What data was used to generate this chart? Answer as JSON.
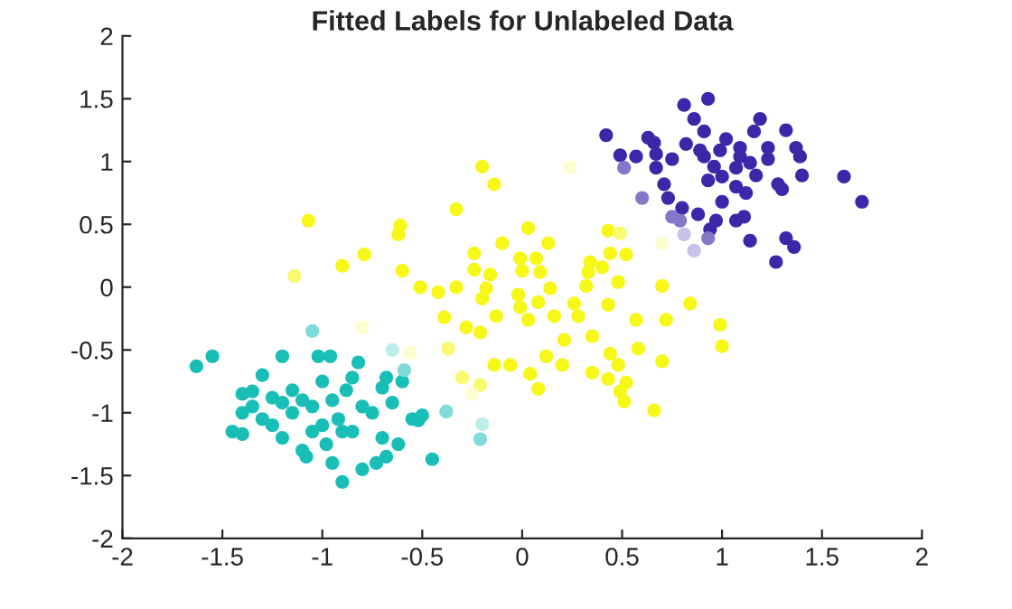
{
  "chart_data": {
    "type": "scatter",
    "title": "Fitted Labels for Unlabeled Data",
    "xlim": [
      -2,
      2
    ],
    "ylim": [
      -2,
      2
    ],
    "xticks": [
      -2,
      -1.5,
      -1,
      -0.5,
      0,
      0.5,
      1,
      1.5,
      2
    ],
    "yticks": [
      -2,
      -1.5,
      -1,
      -0.5,
      0,
      0.5,
      1,
      1.5,
      2
    ],
    "grid": false,
    "marker": "circle",
    "series": [
      {
        "color": "#19bfb7",
        "x": [
          -1.63,
          -1.55,
          -1.4,
          -1.45,
          -1.4,
          -1.35,
          -1.3,
          -1.3,
          -1.25,
          -1.25,
          -1.2,
          -1.2,
          -1.15,
          -1.15,
          -1.1,
          -1.08,
          -1.05,
          -1.02,
          -1.0,
          -1.0,
          -0.98,
          -0.96,
          -0.95,
          -0.92,
          -0.9,
          -0.88,
          -0.85,
          -0.82,
          -0.8,
          -0.8,
          -0.75,
          -0.73,
          -0.7,
          -0.7,
          -0.68,
          -0.65,
          -0.62,
          -0.55,
          -0.5,
          -0.45,
          -1.1,
          -1.05,
          -0.9,
          -1.2,
          -0.95,
          -1.35,
          -1.4,
          -0.85,
          -0.6,
          -0.68,
          -0.52
        ],
        "values": [
          -0.63,
          -0.55,
          -0.85,
          -1.15,
          -1.17,
          -0.95,
          -0.7,
          -1.05,
          -0.88,
          -1.1,
          -0.55,
          -1.2,
          -1.0,
          -0.82,
          -1.3,
          -1.35,
          -0.95,
          -0.55,
          -0.75,
          -1.1,
          -1.25,
          -0.55,
          -0.9,
          -1.05,
          -1.55,
          -0.82,
          -1.15,
          -0.6,
          -0.95,
          -1.45,
          -1.0,
          -1.4,
          -0.8,
          -1.2,
          -1.35,
          -0.92,
          -1.25,
          -1.05,
          -1.02,
          -1.37,
          -0.9,
          -1.15,
          -1.15,
          -0.92,
          -1.4,
          -0.83,
          -1.0,
          -0.72,
          -0.75,
          -0.72,
          -1.06
        ]
      },
      {
        "color": "#80dcd8",
        "x": [
          -1.05,
          -0.59,
          -0.38,
          -0.21
        ],
        "values": [
          -0.35,
          -0.66,
          -0.99,
          -1.21
        ]
      },
      {
        "color": "#bdeeec",
        "x": [
          -0.65,
          -0.2
        ],
        "values": [
          -0.5,
          -1.09
        ]
      },
      {
        "color": "#f7f718",
        "x": [
          -0.2,
          -0.14,
          -1.07,
          -0.33,
          -0.61,
          -0.62,
          -0.79,
          -0.9,
          -0.6,
          -0.51,
          -0.42,
          -0.33,
          -0.39,
          -0.28,
          -0.21,
          -0.14,
          -0.06,
          0.04,
          0.08,
          0.12,
          0.2,
          0.21,
          -0.13,
          -0.24,
          -0.24,
          -0.16,
          -0.18,
          -0.2,
          -0.1,
          0.03,
          0.13,
          -0.01,
          0.07,
          0.09,
          0.0,
          -0.02,
          -0.01,
          0.03,
          0.08,
          0.14,
          0.16,
          0.43,
          0.44,
          0.52,
          0.34,
          0.4,
          0.33,
          0.32,
          0.48,
          0.7,
          0.26,
          0.28,
          0.43,
          0.84,
          0.57,
          0.72,
          0.99,
          1.0,
          0.35,
          0.58,
          0.44,
          0.48,
          0.7,
          0.35,
          0.43,
          0.52,
          0.49,
          0.51,
          0.66
        ],
        "values": [
          0.96,
          0.82,
          0.53,
          0.62,
          0.49,
          0.42,
          0.26,
          0.17,
          0.13,
          0.0,
          -0.04,
          0.0,
          -0.24,
          -0.32,
          -0.36,
          -0.62,
          -0.62,
          -0.69,
          -0.81,
          -0.55,
          -0.62,
          -0.42,
          -0.23,
          0.27,
          0.14,
          0.1,
          -0.01,
          -0.09,
          0.35,
          0.47,
          0.35,
          0.23,
          0.23,
          0.12,
          0.13,
          -0.06,
          -0.16,
          -0.26,
          -0.12,
          -0.01,
          -0.23,
          0.45,
          0.27,
          0.26,
          0.2,
          0.16,
          0.12,
          0.01,
          0.04,
          0.01,
          -0.13,
          -0.23,
          -0.14,
          -0.13,
          -0.26,
          -0.26,
          -0.3,
          -0.47,
          -0.39,
          -0.49,
          -0.53,
          -0.62,
          -0.59,
          -0.68,
          -0.73,
          -0.76,
          -0.83,
          -0.91,
          -0.98
        ]
      },
      {
        "color": "#fafa70",
        "x": [
          -1.14,
          -0.37,
          -0.3,
          -0.21,
          0.49
        ],
        "values": [
          0.09,
          -0.49,
          -0.72,
          -0.78,
          0.43
        ]
      },
      {
        "color": "#fdfdd0",
        "x": [
          -0.8,
          -0.56,
          -0.25,
          0.24,
          0.7
        ],
        "values": [
          -0.32,
          -0.52,
          -0.85,
          0.95,
          0.35
        ]
      },
      {
        "color": "#3c27a8",
        "x": [
          0.42,
          0.49,
          0.57,
          0.63,
          0.66,
          0.81,
          0.93,
          0.86,
          0.91,
          1.02,
          1.16,
          1.19,
          1.32,
          1.37,
          1.39,
          1.4,
          1.61,
          1.7,
          0.67,
          0.67,
          0.71,
          0.73,
          0.8,
          0.88,
          0.94,
          0.97,
          1.0,
          1.07,
          1.11,
          1.14,
          1.32,
          1.36,
          1.27,
          0.91,
          0.96,
          0.93,
          1.0,
          1.07,
          1.12,
          1.07,
          1.17,
          1.23,
          1.28,
          1.23,
          1.3,
          0.82,
          0.89,
          0.75,
          0.99,
          1.09,
          1.09,
          1.14
        ],
        "values": [
          1.21,
          1.05,
          1.04,
          1.19,
          1.15,
          1.45,
          1.5,
          1.34,
          1.24,
          1.18,
          1.24,
          1.34,
          1.25,
          1.11,
          1.04,
          0.89,
          0.88,
          0.68,
          1.06,
          0.95,
          0.82,
          0.71,
          0.63,
          0.58,
          0.46,
          0.53,
          0.68,
          0.53,
          0.56,
          0.37,
          0.39,
          0.32,
          0.2,
          1.04,
          0.96,
          0.85,
          0.88,
          0.95,
          0.75,
          0.8,
          0.89,
          1.02,
          0.82,
          1.11,
          0.78,
          1.14,
          1.09,
          1.02,
          1.09,
          1.11,
          1.04,
          0.99
        ]
      },
      {
        "color": "#8576c8",
        "x": [
          0.51,
          0.6,
          0.75,
          0.79,
          0.93
        ],
        "values": [
          0.95,
          0.71,
          0.56,
          0.53,
          0.39
        ]
      },
      {
        "color": "#c9c2e8",
        "x": [
          0.81,
          0.86
        ],
        "values": [
          0.42,
          0.29
        ]
      }
    ]
  }
}
